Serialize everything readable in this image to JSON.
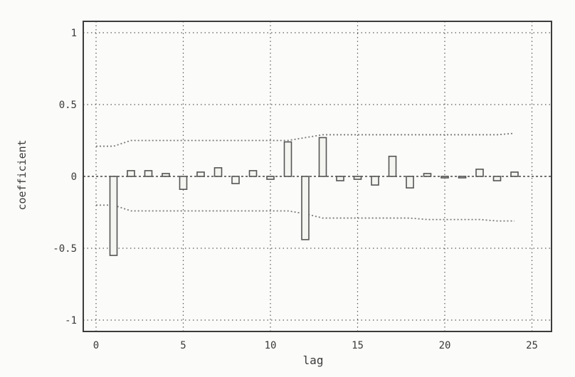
{
  "chart_data": {
    "type": "bar",
    "title": "",
    "xlabel": "lag",
    "ylabel": "coefficient",
    "xlim": [
      -1,
      26
    ],
    "ylim": [
      -1.05,
      1.05
    ],
    "xticks": [
      {
        "value": 0,
        "label": "0"
      },
      {
        "value": 5,
        "label": "5"
      },
      {
        "value": 10,
        "label": "10"
      },
      {
        "value": 15,
        "label": "15"
      },
      {
        "value": 20,
        "label": "20"
      },
      {
        "value": 25,
        "label": "25"
      }
    ],
    "yticks": [
      {
        "value": 1,
        "label": "1"
      },
      {
        "value": 0.5,
        "label": "0.5"
      },
      {
        "value": 0,
        "label": "0"
      },
      {
        "value": -0.5,
        "label": "-0.5"
      },
      {
        "value": -1,
        "label": "-1"
      }
    ],
    "grid": true,
    "x": [
      1,
      2,
      3,
      4,
      5,
      6,
      7,
      8,
      9,
      10,
      11,
      12,
      13,
      14,
      15,
      16,
      17,
      18,
      19,
      20,
      21,
      22,
      23,
      24
    ],
    "values": [
      -0.55,
      0.04,
      0.04,
      0.02,
      -0.09,
      0.03,
      0.06,
      -0.05,
      0.04,
      -0.02,
      0.24,
      -0.44,
      0.27,
      -0.03,
      -0.02,
      -0.06,
      0.14,
      -0.08,
      0.02,
      -0.01,
      -0.01,
      0.05,
      -0.03,
      0.03
    ],
    "confidence_bands": {
      "x": [
        0,
        1,
        2,
        3,
        4,
        5,
        6,
        7,
        8,
        9,
        10,
        11,
        12,
        13,
        14,
        15,
        16,
        17,
        18,
        19,
        20,
        21,
        22,
        23,
        24
      ],
      "upper": [
        0.21,
        0.21,
        0.25,
        0.25,
        0.25,
        0.25,
        0.25,
        0.25,
        0.25,
        0.25,
        0.25,
        0.25,
        0.27,
        0.29,
        0.29,
        0.29,
        0.29,
        0.29,
        0.29,
        0.29,
        0.29,
        0.29,
        0.29,
        0.29,
        0.3
      ],
      "lower": [
        -0.2,
        -0.2,
        -0.24,
        -0.24,
        -0.24,
        -0.24,
        -0.24,
        -0.24,
        -0.24,
        -0.24,
        -0.24,
        -0.24,
        -0.26,
        -0.29,
        -0.29,
        -0.29,
        -0.29,
        -0.29,
        -0.29,
        -0.3,
        -0.3,
        -0.3,
        -0.3,
        -0.31,
        -0.31
      ]
    },
    "colors": {
      "bar_stroke": "#555555",
      "bar_fill": "#f4f4f0",
      "grid": "#5a5a5a",
      "axis": "#3c3c3c",
      "band": "#7a7a7a",
      "zero_line": "#444444"
    }
  }
}
